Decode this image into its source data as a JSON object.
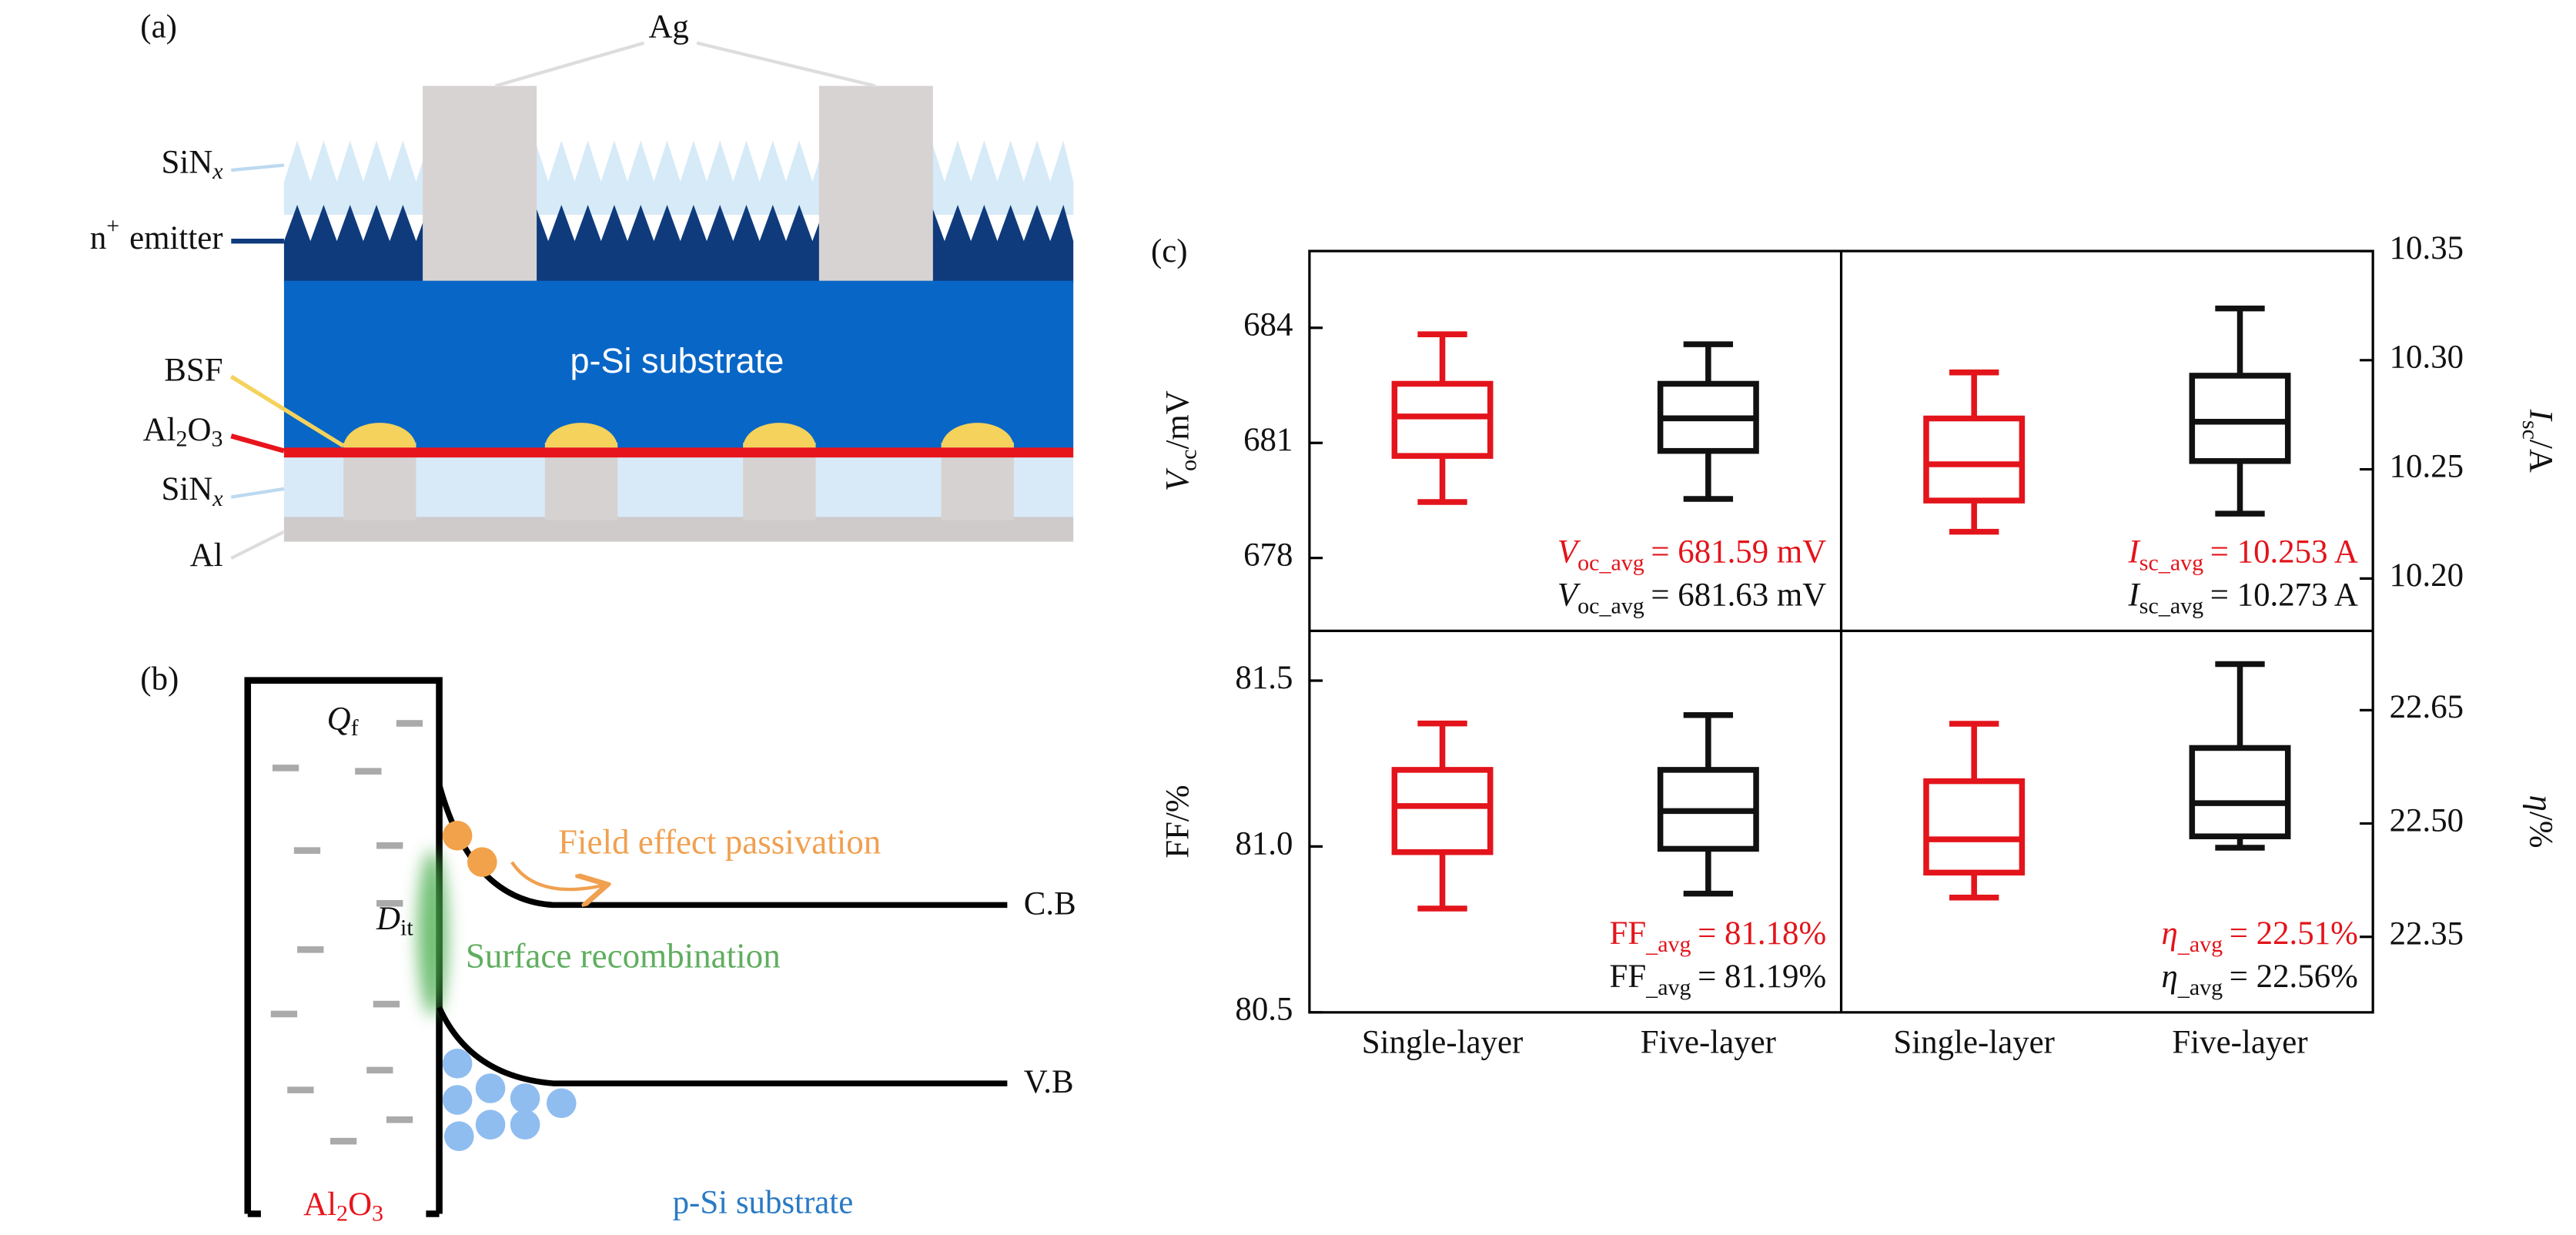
{
  "panel_a": {
    "label": "(a)",
    "ag": "Ag",
    "substrate": "p-Si substrate",
    "sinx_top": {
      "text": "SiN",
      "sub": "x"
    },
    "emitter": {
      "text": "n",
      "sup": "+",
      "rest": "emitter"
    },
    "bsf": "BSF",
    "al2o3": {
      "t1": "Al",
      "s1": "2",
      "t2": "O",
      "s2": "3"
    },
    "sinx_bottom": {
      "text": "SiN",
      "sub": "x"
    },
    "al": "Al"
  },
  "panel_b": {
    "label": "(b)",
    "qf": {
      "text": "Q",
      "sub": "f"
    },
    "dit": {
      "text": "D",
      "sub": "it"
    },
    "field": "Field effect passivation",
    "surface": "Surface recombination",
    "cb": "C.B",
    "vb": "V.B",
    "al2o3": {
      "t1": "Al",
      "s1": "2",
      "t2": "O",
      "s2": "3"
    },
    "substrate": "p-Si substrate"
  },
  "panel_c_label": "(c)",
  "chart_data": [
    {
      "type": "box",
      "side": "left",
      "ylabel": {
        "symbol": "V",
        "sub": "oc",
        "unit": "/mV",
        "italic": true
      },
      "ylim": [
        676.1,
        686.0
      ],
      "yticks": [
        678,
        681,
        684
      ],
      "boxes": [
        {
          "color": "#e3141b",
          "min": 679.46,
          "q1": 680.66,
          "median": 681.69,
          "q3": 682.54,
          "max": 683.83
        },
        {
          "color": "#111111",
          "min": 679.54,
          "q1": 680.79,
          "median": 681.64,
          "q3": 682.54,
          "max": 683.57
        }
      ],
      "annotations": [
        {
          "symbol": "V",
          "sub": "oc_avg",
          "text": "= 681.59 mV",
          "italic": true,
          "color": "#e3141b"
        },
        {
          "symbol": "V",
          "sub": "oc_avg",
          "text": "= 681.63 mV",
          "italic": true,
          "color": "#111111"
        }
      ]
    },
    {
      "type": "box",
      "side": "right",
      "ylabel": {
        "symbol": "I",
        "sub": "sc",
        "unit": "/A",
        "italic": true
      },
      "ylim": [
        10.176,
        10.35
      ],
      "yticks": [
        {
          "value": 10.2,
          "label": "10.20"
        },
        10.25,
        {
          "value": 10.3,
          "label": "10.30"
        },
        10.35
      ],
      "boxes": [
        {
          "color": "#e3141b",
          "min": 10.2214,
          "q1": 10.2357,
          "median": 10.2523,
          "q3": 10.2733,
          "max": 10.2944
        },
        {
          "color": "#111111",
          "min": 10.2297,
          "q1": 10.2538,
          "median": 10.2718,
          "q3": 10.2929,
          "max": 10.3237
        }
      ],
      "annotations": [
        {
          "symbol": "I",
          "sub": "sc_avg",
          "text": "= 10.253 A",
          "italic": true,
          "color": "#e3141b"
        },
        {
          "symbol": "I",
          "sub": "sc_avg",
          "text": "= 10.273 A",
          "italic": true,
          "color": "#111111"
        }
      ]
    },
    {
      "type": "box",
      "side": "left",
      "ylabel": {
        "symbol": "FF",
        "unit": "/%",
        "italic": false
      },
      "ylim": [
        80.5,
        81.65
      ],
      "yticks": [
        80.5,
        {
          "value": 81,
          "label": "81.0"
        },
        81.5
      ],
      "categories": [
        "Single-layer",
        "Five-layer"
      ],
      "boxes": [
        {
          "color": "#e3141b",
          "min": 80.813,
          "q1": 80.983,
          "median": 81.122,
          "q3": 81.231,
          "max": 81.371
        },
        {
          "color": "#111111",
          "min": 80.858,
          "q1": 80.993,
          "median": 81.107,
          "q3": 81.231,
          "max": 81.396
        }
      ],
      "annotations": [
        {
          "symbol": "FF",
          "sub": "_avg",
          "text": "= 81.18%",
          "italic": false,
          "color": "#e3141b"
        },
        {
          "symbol": "FF",
          "sub": "_avg",
          "text": "= 81.19%",
          "italic": false,
          "color": "#111111"
        }
      ]
    },
    {
      "type": "box",
      "side": "right",
      "ylabel": {
        "symbol": "η",
        "unit": "/%",
        "italic": true
      },
      "ylim": [
        22.25,
        22.755
      ],
      "yticks": [
        22.35,
        {
          "value": 22.5,
          "label": "22.50"
        },
        22.65
      ],
      "categories": [
        "Single-layer",
        "Five-layer"
      ],
      "boxes": [
        {
          "color": "#e3141b",
          "min": 22.402,
          "q1": 22.435,
          "median": 22.479,
          "q3": 22.556,
          "max": 22.632
        },
        {
          "color": "#111111",
          "min": 22.468,
          "q1": 22.483,
          "median": 22.527,
          "q3": 22.6,
          "max": 22.711
        }
      ],
      "annotations": [
        {
          "symbol": "η",
          "sub": "_avg",
          "text": "= 22.51%",
          "italic": true,
          "color": "#e3141b"
        },
        {
          "symbol": "η",
          "sub": "_avg",
          "text": "= 22.56%",
          "italic": true,
          "color": "#111111"
        }
      ]
    }
  ]
}
